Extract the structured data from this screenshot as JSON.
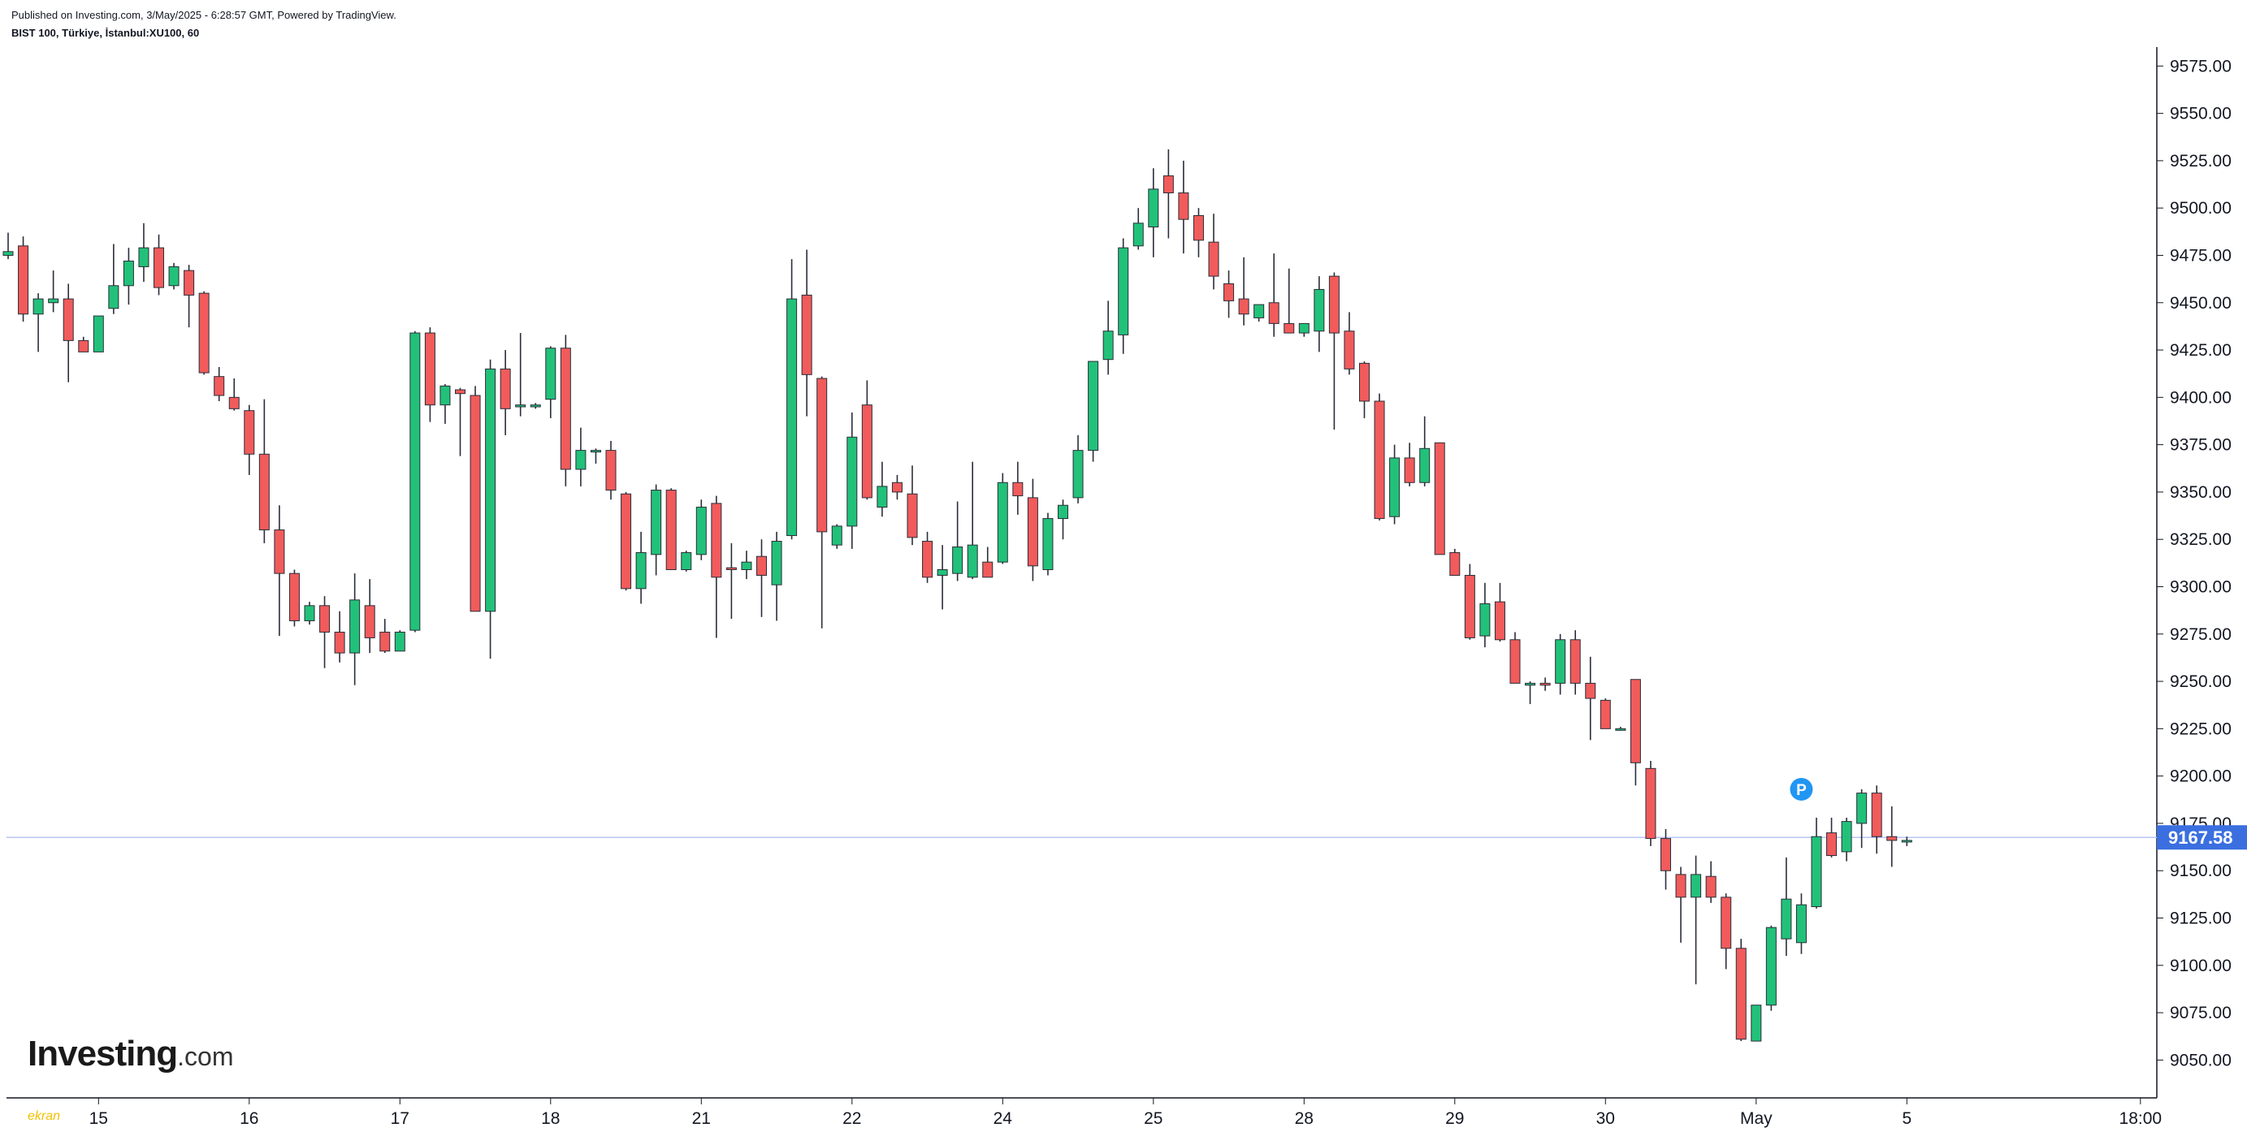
{
  "header": {
    "published": "Published on Investing.com, 3/May/2025 - 6:28:57 GMT, Powered by TradingView.",
    "symbol": "BIST 100, Türkiye, İstanbul:XU100, 60"
  },
  "logo": {
    "word": "Investing",
    "tld": ".com"
  },
  "watermark": "ekran",
  "colors": {
    "up": "#22c17a",
    "down": "#f15b5b",
    "wick": "#2a2e39",
    "axis": "#131722",
    "price_line": "#b9c2f5",
    "price_badge": "#3b6fe0",
    "marker": "#2196f3"
  },
  "chart_data": {
    "type": "candlestick",
    "title": "BIST 100, Türkiye, İstanbul:XU100, 60",
    "interval": "60",
    "y_ticks": [
      9050,
      9075,
      9100,
      9125,
      9150,
      9175,
      9200,
      9225,
      9250,
      9275,
      9300,
      9325,
      9350,
      9375,
      9400,
      9425,
      9450,
      9475,
      9500,
      9525,
      9550,
      9575
    ],
    "y_tick_labels": [
      "9050.00",
      "9075.00",
      "9100.00",
      "9125.00",
      "9150.00",
      "9175.00",
      "9200.00",
      "9225.00",
      "9250.00",
      "9275.00",
      "9300.00",
      "9325.00",
      "9350.00",
      "9375.00",
      "9400.00",
      "9425.00",
      "9450.00",
      "9475.00",
      "9500.00",
      "9525.00",
      "9550.00",
      "9575.00"
    ],
    "ylim": [
      9030,
      9585
    ],
    "x_labels": [
      {
        "label": "15",
        "bar": 6
      },
      {
        "label": "16",
        "bar": 16
      },
      {
        "label": "17",
        "bar": 26
      },
      {
        "label": "18",
        "bar": 36
      },
      {
        "label": "21",
        "bar": 46
      },
      {
        "label": "22",
        "bar": 56
      },
      {
        "label": "24",
        "bar": 66
      },
      {
        "label": "25",
        "bar": 76
      },
      {
        "label": "28",
        "bar": 86
      },
      {
        "label": "29",
        "bar": 96
      },
      {
        "label": "30",
        "bar": 106
      },
      {
        "label": "May",
        "bar": 116
      },
      {
        "label": "5",
        "bar": 126
      },
      {
        "label": "18:00",
        "bar": 141.5
      }
    ],
    "last_price": 9167.58,
    "last_price_label": "9167.58",
    "marker": {
      "label": "P",
      "bar": 119,
      "price": 9193
    },
    "candles": [
      [
        9475,
        9487,
        9473,
        9477
      ],
      [
        9480,
        9485,
        9440,
        9444
      ],
      [
        9444,
        9455,
        9424,
        9452
      ],
      [
        9450,
        9467,
        9445,
        9452
      ],
      [
        9452,
        9460,
        9408,
        9430
      ],
      [
        9430,
        9432,
        9424,
        9424
      ],
      [
        9424,
        9443,
        9424,
        9443
      ],
      [
        9447,
        9481,
        9444,
        9459
      ],
      [
        9459,
        9479,
        9449,
        9472
      ],
      [
        9469,
        9492,
        9461,
        9479
      ],
      [
        9479,
        9486,
        9454,
        9458
      ],
      [
        9459,
        9471,
        9457,
        9469
      ],
      [
        9467,
        9470,
        9437,
        9454
      ],
      [
        9455,
        9456,
        9412,
        9413
      ],
      [
        9411,
        9416,
        9398,
        9401
      ],
      [
        9400,
        9410,
        9393,
        9394
      ],
      [
        9393,
        9396,
        9359,
        9370
      ],
      [
        9370,
        9399,
        9323,
        9330
      ],
      [
        9330,
        9343,
        9274,
        9307
      ],
      [
        9307,
        9309,
        9279,
        9282
      ],
      [
        9282,
        9292,
        9280,
        9290
      ],
      [
        9290,
        9295,
        9257,
        9276
      ],
      [
        9276,
        9287,
        9260,
        9265
      ],
      [
        9265,
        9307,
        9248,
        9293
      ],
      [
        9290,
        9304,
        9265,
        9273
      ],
      [
        9276,
        9283,
        9265,
        9266
      ],
      [
        9266,
        9277,
        9266,
        9276
      ],
      [
        9277,
        9435,
        9276,
        9434
      ],
      [
        9434,
        9437,
        9387,
        9396
      ],
      [
        9396,
        9407,
        9386,
        9406
      ],
      [
        9404,
        9405,
        9369,
        9402
      ],
      [
        9401,
        9406,
        9288,
        9287
      ],
      [
        9287,
        9420,
        9262,
        9415
      ],
      [
        9415,
        9425,
        9380,
        9394
      ],
      [
        9395,
        9434,
        9390,
        9396
      ],
      [
        9395,
        9397,
        9394,
        9396
      ],
      [
        9399,
        9427,
        9389,
        9426
      ],
      [
        9426,
        9433,
        9353,
        9362
      ],
      [
        9362,
        9384,
        9353,
        9372
      ],
      [
        9372,
        9373,
        9365,
        9372
      ],
      [
        9372,
        9377,
        9346,
        9351
      ],
      [
        9349,
        9350,
        9298,
        9299
      ],
      [
        9299,
        9329,
        9291,
        9318
      ],
      [
        9317,
        9354,
        9306,
        9351
      ],
      [
        9351,
        9352,
        9311,
        9309
      ],
      [
        9309,
        9319,
        9308,
        9318
      ],
      [
        9317,
        9346,
        9314,
        9342
      ],
      [
        9344,
        9348,
        9273,
        9305
      ],
      [
        9310,
        9323,
        9283,
        9309
      ],
      [
        9309,
        9319,
        9304,
        9313
      ],
      [
        9316,
        9325,
        9284,
        9306
      ],
      [
        9301,
        9329,
        9282,
        9324
      ],
      [
        9327,
        9473,
        9325,
        9452
      ],
      [
        9454,
        9478,
        9390,
        9412
      ],
      [
        9410,
        9411,
        9278,
        9329
      ],
      [
        9322,
        9333,
        9320,
        9332
      ],
      [
        9332,
        9392,
        9320,
        9379
      ],
      [
        9396,
        9409,
        9346,
        9347
      ],
      [
        9342,
        9366,
        9337,
        9353
      ],
      [
        9355,
        9359,
        9346,
        9350
      ],
      [
        9349,
        9364,
        9322,
        9326
      ],
      [
        9324,
        9329,
        9302,
        9305
      ],
      [
        9306,
        9322,
        9288,
        9309
      ],
      [
        9307,
        9345,
        9303,
        9321
      ],
      [
        9305,
        9366,
        9304,
        9322
      ],
      [
        9313,
        9321,
        9306,
        9305
      ],
      [
        9313,
        9360,
        9312,
        9355
      ],
      [
        9355,
        9366,
        9338,
        9348
      ],
      [
        9347,
        9357,
        9303,
        9311
      ],
      [
        9309,
        9339,
        9306,
        9336
      ],
      [
        9336,
        9346,
        9325,
        9343
      ],
      [
        9347,
        9380,
        9344,
        9372
      ],
      [
        9372,
        9418,
        9366,
        9419
      ],
      [
        9420,
        9451,
        9412,
        9435
      ],
      [
        9433,
        9484,
        9423,
        9479
      ],
      [
        9480,
        9500,
        9478,
        9492
      ],
      [
        9490,
        9521,
        9474,
        9510
      ],
      [
        9517,
        9531,
        9484,
        9508
      ],
      [
        9508,
        9525,
        9476,
        9494
      ],
      [
        9496,
        9500,
        9474,
        9483
      ],
      [
        9482,
        9497,
        9457,
        9464
      ],
      [
        9460,
        9467,
        9442,
        9451
      ],
      [
        9452,
        9474,
        9438,
        9444
      ],
      [
        9442,
        9449,
        9440,
        9449
      ],
      [
        9450,
        9476,
        9432,
        9439
      ],
      [
        9439,
        9468,
        9434,
        9434
      ],
      [
        9434,
        9436,
        9432,
        9439
      ],
      [
        9435,
        9464,
        9424,
        9457
      ],
      [
        9464,
        9466,
        9383,
        9434
      ],
      [
        9435,
        9445,
        9412,
        9415
      ],
      [
        9418,
        9419,
        9389,
        9398
      ],
      [
        9398,
        9402,
        9335,
        9336
      ],
      [
        9337,
        9375,
        9333,
        9368
      ],
      [
        9368,
        9376,
        9353,
        9355
      ],
      [
        9355,
        9390,
        9353,
        9373
      ],
      [
        9376,
        9376,
        9318,
        9317
      ],
      [
        9318,
        9320,
        9306,
        9306
      ],
      [
        9306,
        9312,
        9272,
        9273
      ],
      [
        9274,
        9302,
        9268,
        9291
      ],
      [
        9292,
        9302,
        9271,
        9272
      ],
      [
        9272,
        9276,
        9251,
        9249
      ],
      [
        9248,
        9250,
        9238,
        9249
      ],
      [
        9249,
        9252,
        9245,
        9248
      ],
      [
        9249,
        9275,
        9243,
        9272
      ],
      [
        9272,
        9277,
        9243,
        9249
      ],
      [
        9249,
        9263,
        9219,
        9241
      ],
      [
        9240,
        9241,
        9225,
        9225
      ],
      [
        9225,
        9226,
        9224,
        9225
      ],
      [
        9251,
        9251,
        9195,
        9207
      ],
      [
        9204,
        9208,
        9163,
        9167
      ],
      [
        9167,
        9172,
        9140,
        9150
      ],
      [
        9148,
        9152,
        9112,
        9136
      ],
      [
        9136,
        9158,
        9090,
        9148
      ],
      [
        9147,
        9155,
        9133,
        9136
      ],
      [
        9136,
        9138,
        9098,
        9109
      ],
      [
        9109,
        9114,
        9060,
        9061
      ],
      [
        9060,
        9079,
        9060,
        9079
      ],
      [
        9079,
        9121,
        9076,
        9120
      ],
      [
        9114,
        9157,
        9105,
        9135
      ],
      [
        9112,
        9138,
        9106,
        9132
      ],
      [
        9131,
        9178,
        9130,
        9168
      ],
      [
        9170,
        9178,
        9157,
        9158
      ],
      [
        9160,
        9178,
        9155,
        9176
      ],
      [
        9175,
        9193,
        9162,
        9191
      ],
      [
        9191,
        9195,
        9159,
        9168
      ],
      [
        9168,
        9184,
        9152,
        9166
      ],
      [
        9166,
        9168,
        9163,
        9166
      ]
    ]
  }
}
